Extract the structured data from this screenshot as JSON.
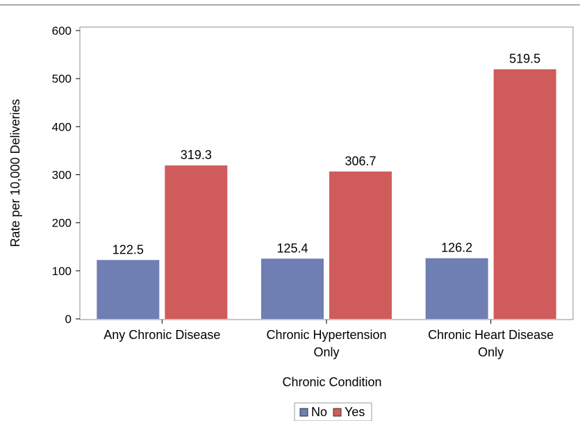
{
  "chart_data": {
    "type": "bar",
    "categories": [
      [
        "Any Chronic Disease"
      ],
      [
        "Chronic Hypertension",
        "Only"
      ],
      [
        "Chronic Heart Disease",
        "Only"
      ]
    ],
    "series": [
      {
        "name": "No",
        "values": [
          122.5,
          125.4,
          126.2
        ],
        "labels": [
          "122.5",
          "125.4",
          "126.2"
        ],
        "color": "#6F7EB3"
      },
      {
        "name": "Yes",
        "values": [
          319.3,
          306.7,
          519.5
        ],
        "labels": [
          "319.3",
          "306.7",
          "519.5"
        ],
        "color": "#D05B5B"
      }
    ],
    "xlabel": "Chronic Condition",
    "ylabel": "Rate per 10,000 Deliveries",
    "ylim": [
      0,
      600
    ],
    "yticks": [
      0,
      100,
      200,
      300,
      400,
      500,
      600
    ],
    "grid": false,
    "legend_position": "bottom-center"
  }
}
